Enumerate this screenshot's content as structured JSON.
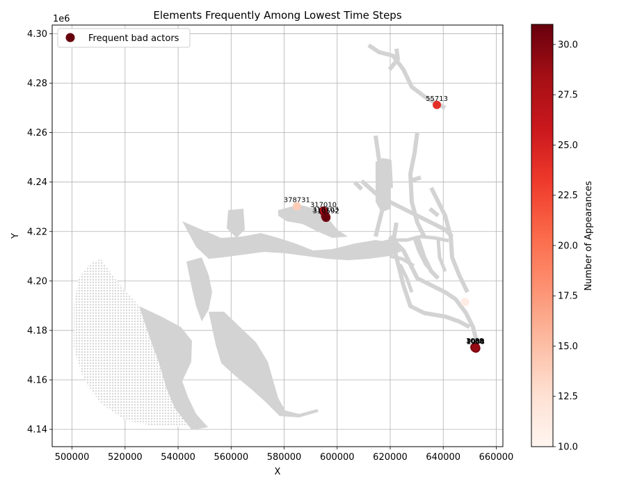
{
  "chart_data": {
    "type": "scatter",
    "title": "Elements Frequently Among Lowest Time Steps",
    "xlabel": "X",
    "ylabel": "Y",
    "y_offset_label": "1e6",
    "xlim": [
      492500,
      662500
    ],
    "ylim": [
      4.133,
      4.3035
    ],
    "x_ticks": [
      500000,
      520000,
      540000,
      560000,
      580000,
      600000,
      620000,
      640000,
      660000
    ],
    "x_tick_labels": [
      "500000",
      "520000",
      "540000",
      "560000",
      "580000",
      "600000",
      "620000",
      "640000",
      "660000"
    ],
    "y_ticks": [
      4.14,
      4.16,
      4.18,
      4.2,
      4.22,
      4.24,
      4.26,
      4.28,
      4.3
    ],
    "y_tick_labels": [
      "4.14",
      "4.16",
      "4.18",
      "4.20",
      "4.22",
      "4.24",
      "4.26",
      "4.28",
      "4.30"
    ],
    "grid": true,
    "legend": {
      "placement": "upper-left",
      "entries": [
        "Frequent bad actors"
      ]
    },
    "colorbar": {
      "label": "Number of Appearances",
      "vmin": 10.0,
      "vmax": 31.0,
      "ticks": [
        "10.0",
        "12.5",
        "15.0",
        "17.5",
        "20.0",
        "22.5",
        "25.0",
        "27.5",
        "30.0"
      ],
      "cmap": "Reds"
    },
    "background_mesh_color": "#d3d3d3",
    "points": [
      {
        "x": 637600,
        "y": 4.2712,
        "value": 24,
        "label": "55713"
      },
      {
        "x": 584800,
        "y": 4.2302,
        "value": 14,
        "label": "378731"
      },
      {
        "x": 594800,
        "y": 4.2283,
        "value": 27,
        "label": "317010"
      },
      {
        "x": 595600,
        "y": 4.2262,
        "value": 31,
        "label": "318103"
      },
      {
        "x": 595800,
        "y": 4.2257,
        "value": 31,
        "label": "310592"
      },
      {
        "x": 648200,
        "y": 4.1915,
        "value": 11,
        "label": ""
      },
      {
        "x": 652000,
        "y": 4.173,
        "value": 31,
        "label": "1008"
      },
      {
        "x": 652300,
        "y": 4.1728,
        "value": 28,
        "label": "2088"
      },
      {
        "x": 651900,
        "y": 4.1732,
        "value": 31,
        "label": "3088"
      },
      {
        "x": 652200,
        "y": 4.1731,
        "value": 29,
        "label": "4088"
      }
    ]
  }
}
